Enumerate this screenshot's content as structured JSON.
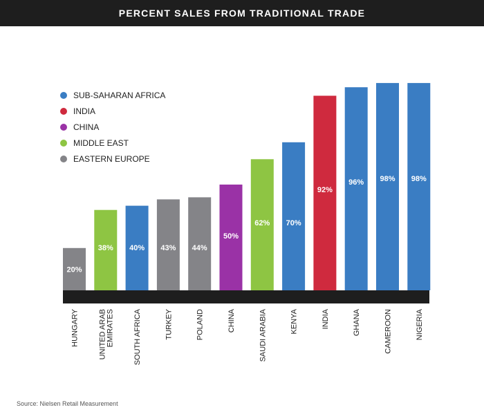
{
  "chart_data": {
    "type": "bar",
    "title": "PERCENT SALES FROM TRADITIONAL TRADE",
    "categories": [
      "HUNGARY",
      "UNITED ARAB\nEMIRATES",
      "SOUTH AFRICA",
      "TURKEY",
      "POLAND",
      "CHINA",
      "SAUDI ARABIA",
      "KENYA",
      "INDIA",
      "GHANA",
      "CAMEROON",
      "NIGERIA"
    ],
    "values": [
      20,
      38,
      40,
      43,
      44,
      50,
      62,
      70,
      92,
      96,
      98,
      98
    ],
    "value_labels": [
      "20%",
      "38%",
      "40%",
      "43%",
      "44%",
      "50%",
      "62%",
      "70%",
      "92%",
      "96%",
      "98%",
      "98%"
    ],
    "groups": [
      "EASTERN EUROPE",
      "MIDDLE EAST",
      "SUB-SAHARAN AFRICA",
      "EASTERN EUROPE",
      "EASTERN EUROPE",
      "CHINA",
      "MIDDLE EAST",
      "SUB-SAHARAN AFRICA",
      "INDIA",
      "SUB-SAHARAN AFRICA",
      "SUB-SAHARAN AFRICA",
      "SUB-SAHARAN AFRICA"
    ],
    "legend": [
      {
        "name": "SUB-SAHARAN AFRICA",
        "color": "#3a7dc3"
      },
      {
        "name": "INDIA",
        "color": "#cf2a3e"
      },
      {
        "name": "CHINA",
        "color": "#9a32a6"
      },
      {
        "name": "MIDDLE EAST",
        "color": "#8ec543"
      },
      {
        "name": "EASTERN EUROPE",
        "color": "#848488"
      }
    ],
    "legend_position": "top-left",
    "ylim": [
      0,
      100
    ],
    "grid": false,
    "baseline_color": "#1e1e1e"
  },
  "source": "Source: Nielsen Retail Measurement"
}
